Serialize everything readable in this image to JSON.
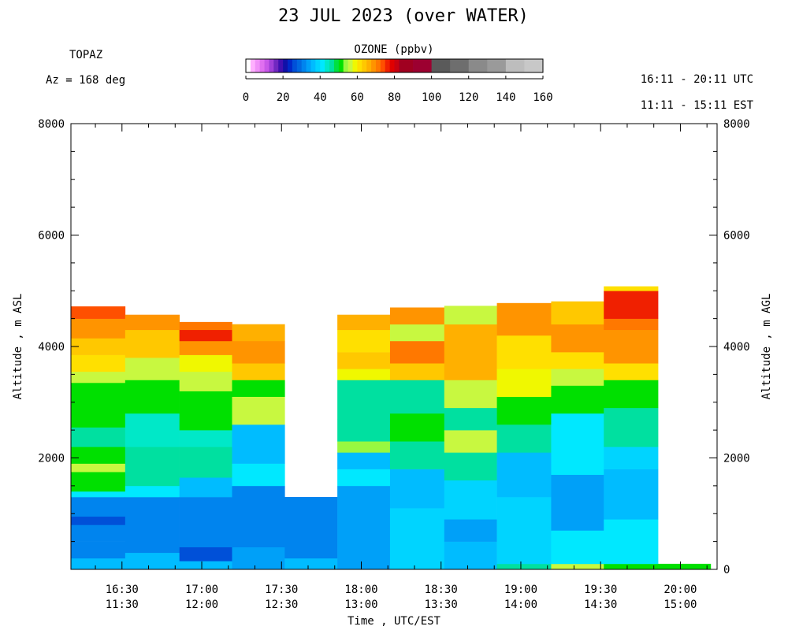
{
  "header": {
    "title": "23 JUL 2023 (over WATER)",
    "instrument": "TOPAZ",
    "azimuth": "Az = 168 deg",
    "utc_range": "16:11 - 20:11 UTC",
    "est_range": "11:11 - 15:11 EST"
  },
  "colorbar": {
    "title": "OZONE (ppbv)",
    "tick_labels": [
      "0",
      "20",
      "40",
      "60",
      "80",
      "100",
      "120",
      "140",
      "160"
    ],
    "ticks": [
      0,
      20,
      40,
      60,
      80,
      100,
      120,
      140,
      160
    ],
    "bins": [
      {
        "lo": 0,
        "hi": 2.5,
        "color": "#ffffff"
      },
      {
        "lo": 2.5,
        "hi": 5,
        "color": "#ffb0ff"
      },
      {
        "lo": 5,
        "hi": 7.5,
        "color": "#f090f8"
      },
      {
        "lo": 7.5,
        "hi": 10,
        "color": "#e070f0"
      },
      {
        "lo": 10,
        "hi": 12.5,
        "color": "#c858e8"
      },
      {
        "lo": 12.5,
        "hi": 15,
        "color": "#a040d8"
      },
      {
        "lo": 15,
        "hi": 17.5,
        "color": "#7028c0"
      },
      {
        "lo": 17.5,
        "hi": 20,
        "color": "#4010b0"
      },
      {
        "lo": 20,
        "hi": 22.5,
        "color": "#1010a8"
      },
      {
        "lo": 22.5,
        "hi": 25,
        "color": "#0028c8"
      },
      {
        "lo": 25,
        "hi": 27.5,
        "color": "#0050d8"
      },
      {
        "lo": 27.5,
        "hi": 30,
        "color": "#0068e0"
      },
      {
        "lo": 30,
        "hi": 32.5,
        "color": "#0084ee"
      },
      {
        "lo": 32.5,
        "hi": 35,
        "color": "#00a0f8"
      },
      {
        "lo": 35,
        "hi": 37.5,
        "color": "#00bcff"
      },
      {
        "lo": 37.5,
        "hi": 40,
        "color": "#00d4ff"
      },
      {
        "lo": 40,
        "hi": 42.5,
        "color": "#00e8ff"
      },
      {
        "lo": 42.5,
        "hi": 45,
        "color": "#00e8c8"
      },
      {
        "lo": 45,
        "hi": 47.5,
        "color": "#00e0a0"
      },
      {
        "lo": 47.5,
        "hi": 50,
        "color": "#00e040"
      },
      {
        "lo": 50,
        "hi": 52.5,
        "color": "#00e000"
      },
      {
        "lo": 52.5,
        "hi": 55,
        "color": "#98f840"
      },
      {
        "lo": 55,
        "hi": 57.5,
        "color": "#c8f840"
      },
      {
        "lo": 57.5,
        "hi": 60,
        "color": "#f0f800"
      },
      {
        "lo": 60,
        "hi": 62.5,
        "color": "#ffe000"
      },
      {
        "lo": 62.5,
        "hi": 65,
        "color": "#ffc800"
      },
      {
        "lo": 65,
        "hi": 67.5,
        "color": "#ffb000"
      },
      {
        "lo": 67.5,
        "hi": 70,
        "color": "#ff9400"
      },
      {
        "lo": 70,
        "hi": 72.5,
        "color": "#ff7800"
      },
      {
        "lo": 72.5,
        "hi": 75,
        "color": "#ff5000"
      },
      {
        "lo": 75,
        "hi": 77.5,
        "color": "#f02000"
      },
      {
        "lo": 77.5,
        "hi": 80,
        "color": "#e00000"
      },
      {
        "lo": 80,
        "hi": 82.5,
        "color": "#c80010"
      },
      {
        "lo": 82.5,
        "hi": 85,
        "color": "#a00020"
      },
      {
        "lo": 85,
        "hi": 90,
        "color": "#a00020"
      },
      {
        "lo": 90,
        "hi": 100,
        "color": "#9c0030"
      },
      {
        "lo": 100,
        "hi": 110,
        "color": "#5a5a5a"
      },
      {
        "lo": 110,
        "hi": 120,
        "color": "#6e6e6e"
      },
      {
        "lo": 120,
        "hi": 130,
        "color": "#8a8a8a"
      },
      {
        "lo": 130,
        "hi": 140,
        "color": "#9a9a9a"
      },
      {
        "lo": 140,
        "hi": 150,
        "color": "#bdbdbd"
      },
      {
        "lo": 150,
        "hi": 160,
        "color": "#c8c8c8"
      }
    ]
  },
  "axes": {
    "x_label": "Time , UTC/EST",
    "y_label_left": "Altitude , m ASL",
    "y_label_right": "Altitude , m AGL",
    "y_tick_labels_left": [
      "2000",
      "4000",
      "6000",
      "8000"
    ],
    "y_ticks_left": [
      2000,
      4000,
      6000,
      8000
    ],
    "y_tick_labels_right": [
      "0",
      "2000",
      "4000",
      "6000",
      "8000"
    ],
    "y_ticks_right": [
      0,
      2000,
      4000,
      6000,
      8000
    ],
    "x_tick_labels_utc": [
      "16:30",
      "17:00",
      "17:30",
      "18:00",
      "18:30",
      "19:00",
      "19:30",
      "20:00"
    ],
    "x_tick_labels_est": [
      "11:30",
      "12:00",
      "12:30",
      "13:00",
      "13:30",
      "14:00",
      "14:30",
      "15:00"
    ],
    "x_ticks_hours_utc": [
      16.5,
      17.0,
      17.5,
      18.0,
      18.5,
      19.0,
      19.5,
      20.0
    ]
  },
  "chart_data": {
    "type": "heatmap",
    "title": "23 JUL 2023 (over WATER)",
    "xlabel": "Time , UTC/EST",
    "ylabel": "Altitude , m ASL",
    "ylabel_right": "Altitude , m AGL",
    "x_unit": "hours UTC",
    "xlim": [
      16.18,
      20.23
    ],
    "ylim": [
      0,
      8000
    ],
    "value_label": "OZONE (ppbv)",
    "value_range": [
      0,
      160
    ],
    "profiles": [
      {
        "t0": 16.18,
        "t1": 16.52,
        "top": 4720,
        "layers": [
          {
            "z0": 0,
            "z1": 200,
            "v": 35
          },
          {
            "z0": 200,
            "z1": 500,
            "v": 30
          },
          {
            "z0": 500,
            "z1": 800,
            "v": 32
          },
          {
            "z0": 800,
            "z1": 950,
            "v": 25
          },
          {
            "z0": 950,
            "z1": 1300,
            "v": 30
          },
          {
            "z0": 1300,
            "z1": 1400,
            "v": 40
          },
          {
            "z0": 1400,
            "z1": 1750,
            "v": 50
          },
          {
            "z0": 1750,
            "z1": 1900,
            "v": 57
          },
          {
            "z0": 1900,
            "z1": 2200,
            "v": 50
          },
          {
            "z0": 2200,
            "z1": 2550,
            "v": 45
          },
          {
            "z0": 2550,
            "z1": 3350,
            "v": 50
          },
          {
            "z0": 3350,
            "z1": 3550,
            "v": 55
          },
          {
            "z0": 3550,
            "z1": 3850,
            "v": 60
          },
          {
            "z0": 3850,
            "z1": 4150,
            "v": 64
          },
          {
            "z0": 4150,
            "z1": 4500,
            "v": 68
          },
          {
            "z0": 4500,
            "z1": 4720,
            "v": 73
          }
        ]
      },
      {
        "t0": 16.52,
        "t1": 16.86,
        "top": 4570,
        "layers": [
          {
            "z0": 0,
            "z1": 300,
            "v": 35
          },
          {
            "z0": 300,
            "z1": 1300,
            "v": 32
          },
          {
            "z0": 1300,
            "z1": 1500,
            "v": 40
          },
          {
            "z0": 1500,
            "z1": 2200,
            "v": 47
          },
          {
            "z0": 2200,
            "z1": 2800,
            "v": 43
          },
          {
            "z0": 2800,
            "z1": 3400,
            "v": 50
          },
          {
            "z0": 3400,
            "z1": 3800,
            "v": 57
          },
          {
            "z0": 3800,
            "z1": 4300,
            "v": 63
          },
          {
            "z0": 4300,
            "z1": 4570,
            "v": 69
          }
        ]
      },
      {
        "t0": 16.86,
        "t1": 17.19,
        "top": 4440,
        "layers": [
          {
            "z0": 0,
            "z1": 150,
            "v": 37
          },
          {
            "z0": 150,
            "z1": 400,
            "v": 27
          },
          {
            "z0": 400,
            "z1": 1300,
            "v": 32
          },
          {
            "z0": 1300,
            "z1": 1650,
            "v": 37
          },
          {
            "z0": 1650,
            "z1": 2200,
            "v": 47
          },
          {
            "z0": 2200,
            "z1": 2500,
            "v": 43
          },
          {
            "z0": 2500,
            "z1": 3200,
            "v": 50
          },
          {
            "z0": 3200,
            "z1": 3550,
            "v": 55
          },
          {
            "z0": 3550,
            "z1": 3850,
            "v": 59
          },
          {
            "z0": 3850,
            "z1": 4100,
            "v": 68
          },
          {
            "z0": 4100,
            "z1": 4300,
            "v": 76
          },
          {
            "z0": 4300,
            "z1": 4440,
            "v": 70
          }
        ]
      },
      {
        "t0": 17.19,
        "t1": 17.52,
        "top": 4400,
        "layers": [
          {
            "z0": 0,
            "z1": 400,
            "v": 34
          },
          {
            "z0": 400,
            "z1": 1500,
            "v": 32
          },
          {
            "z0": 1500,
            "z1": 1900,
            "v": 42
          },
          {
            "z0": 1900,
            "z1": 2600,
            "v": 37
          },
          {
            "z0": 2600,
            "z1": 3100,
            "v": 55
          },
          {
            "z0": 3100,
            "z1": 3400,
            "v": 50
          },
          {
            "z0": 3400,
            "z1": 3700,
            "v": 63
          },
          {
            "z0": 3700,
            "z1": 4100,
            "v": 69
          },
          {
            "z0": 4100,
            "z1": 4400,
            "v": 67
          }
        ]
      },
      {
        "t0": 17.52,
        "t1": 17.85,
        "top": 1300,
        "layers": [
          {
            "z0": 0,
            "z1": 200,
            "v": 37
          },
          {
            "z0": 200,
            "z1": 1300,
            "v": 30
          }
        ]
      },
      {
        "t0": 17.85,
        "t1": 18.18,
        "top": 4570,
        "layers": [
          {
            "z0": 0,
            "z1": 1500,
            "v": 34
          },
          {
            "z0": 1500,
            "z1": 1800,
            "v": 42
          },
          {
            "z0": 1800,
            "z1": 2100,
            "v": 37
          },
          {
            "z0": 2100,
            "z1": 2300,
            "v": 53
          },
          {
            "z0": 2300,
            "z1": 2700,
            "v": 45
          },
          {
            "z0": 2700,
            "z1": 3400,
            "v": 47
          },
          {
            "z0": 3400,
            "z1": 3600,
            "v": 58
          },
          {
            "z0": 3600,
            "z1": 3900,
            "v": 64
          },
          {
            "z0": 3900,
            "z1": 4300,
            "v": 62
          },
          {
            "z0": 4300,
            "z1": 4570,
            "v": 67
          }
        ]
      },
      {
        "t0": 18.18,
        "t1": 18.52,
        "top": 4700,
        "layers": [
          {
            "z0": 0,
            "z1": 1100,
            "v": 39
          },
          {
            "z0": 1100,
            "z1": 1800,
            "v": 36
          },
          {
            "z0": 1800,
            "z1": 2300,
            "v": 45
          },
          {
            "z0": 2300,
            "z1": 2800,
            "v": 50
          },
          {
            "z0": 2800,
            "z1": 3400,
            "v": 45
          },
          {
            "z0": 3400,
            "z1": 3700,
            "v": 63
          },
          {
            "z0": 3700,
            "z1": 4100,
            "v": 70
          },
          {
            "z0": 4100,
            "z1": 4400,
            "v": 57
          },
          {
            "z0": 4400,
            "z1": 4700,
            "v": 69
          }
        ]
      },
      {
        "t0": 18.52,
        "t1": 18.85,
        "top": 4730,
        "layers": [
          {
            "z0": 0,
            "z1": 500,
            "v": 35
          },
          {
            "z0": 500,
            "z1": 900,
            "v": 33
          },
          {
            "z0": 900,
            "z1": 1600,
            "v": 38
          },
          {
            "z0": 1600,
            "z1": 2100,
            "v": 45
          },
          {
            "z0": 2100,
            "z1": 2500,
            "v": 56
          },
          {
            "z0": 2500,
            "z1": 2900,
            "v": 47
          },
          {
            "z0": 2900,
            "z1": 3400,
            "v": 55
          },
          {
            "z0": 3400,
            "z1": 4000,
            "v": 67
          },
          {
            "z0": 4000,
            "z1": 4400,
            "v": 65
          },
          {
            "z0": 4400,
            "z1": 4730,
            "v": 57
          }
        ]
      },
      {
        "t0": 18.85,
        "t1": 19.19,
        "top": 4780,
        "layers": [
          {
            "z0": 0,
            "z1": 100,
            "v": 47
          },
          {
            "z0": 100,
            "z1": 1300,
            "v": 39
          },
          {
            "z0": 1300,
            "z1": 2100,
            "v": 37
          },
          {
            "z0": 2100,
            "z1": 2600,
            "v": 45
          },
          {
            "z0": 2600,
            "z1": 3100,
            "v": 50
          },
          {
            "z0": 3100,
            "z1": 3600,
            "v": 58
          },
          {
            "z0": 3600,
            "z1": 4200,
            "v": 60
          },
          {
            "z0": 4200,
            "z1": 4780,
            "v": 68
          }
        ]
      },
      {
        "t0": 19.19,
        "t1": 19.52,
        "top": 4810,
        "layers": [
          {
            "z0": 0,
            "z1": 100,
            "v": 56
          },
          {
            "z0": 100,
            "z1": 700,
            "v": 40
          },
          {
            "z0": 700,
            "z1": 1700,
            "v": 34
          },
          {
            "z0": 1700,
            "z1": 2800,
            "v": 40
          },
          {
            "z0": 2800,
            "z1": 3300,
            "v": 50
          },
          {
            "z0": 3300,
            "z1": 3600,
            "v": 57
          },
          {
            "z0": 3600,
            "z1": 3900,
            "v": 62
          },
          {
            "z0": 3900,
            "z1": 4400,
            "v": 68
          },
          {
            "z0": 4400,
            "z1": 4810,
            "v": 64
          }
        ]
      },
      {
        "t0": 19.52,
        "t1": 19.86,
        "top": 5080,
        "layers": [
          {
            "z0": 0,
            "z1": 100,
            "v": 50
          },
          {
            "z0": 100,
            "z1": 900,
            "v": 40
          },
          {
            "z0": 900,
            "z1": 1800,
            "v": 35
          },
          {
            "z0": 1800,
            "z1": 2200,
            "v": 38
          },
          {
            "z0": 2200,
            "z1": 2900,
            "v": 45
          },
          {
            "z0": 2900,
            "z1": 3400,
            "v": 50
          },
          {
            "z0": 3400,
            "z1": 3700,
            "v": 60
          },
          {
            "z0": 3700,
            "z1": 4300,
            "v": 68
          },
          {
            "z0": 4300,
            "z1": 4500,
            "v": 70
          },
          {
            "z0": 4500,
            "z1": 5000,
            "v": 77
          },
          {
            "z0": 5000,
            "z1": 5080,
            "v": 60
          }
        ]
      },
      {
        "t0": 19.86,
        "t1": 20.19,
        "top": 100,
        "layers": [
          {
            "z0": 0,
            "z1": 100,
            "v": 50
          }
        ]
      }
    ]
  }
}
